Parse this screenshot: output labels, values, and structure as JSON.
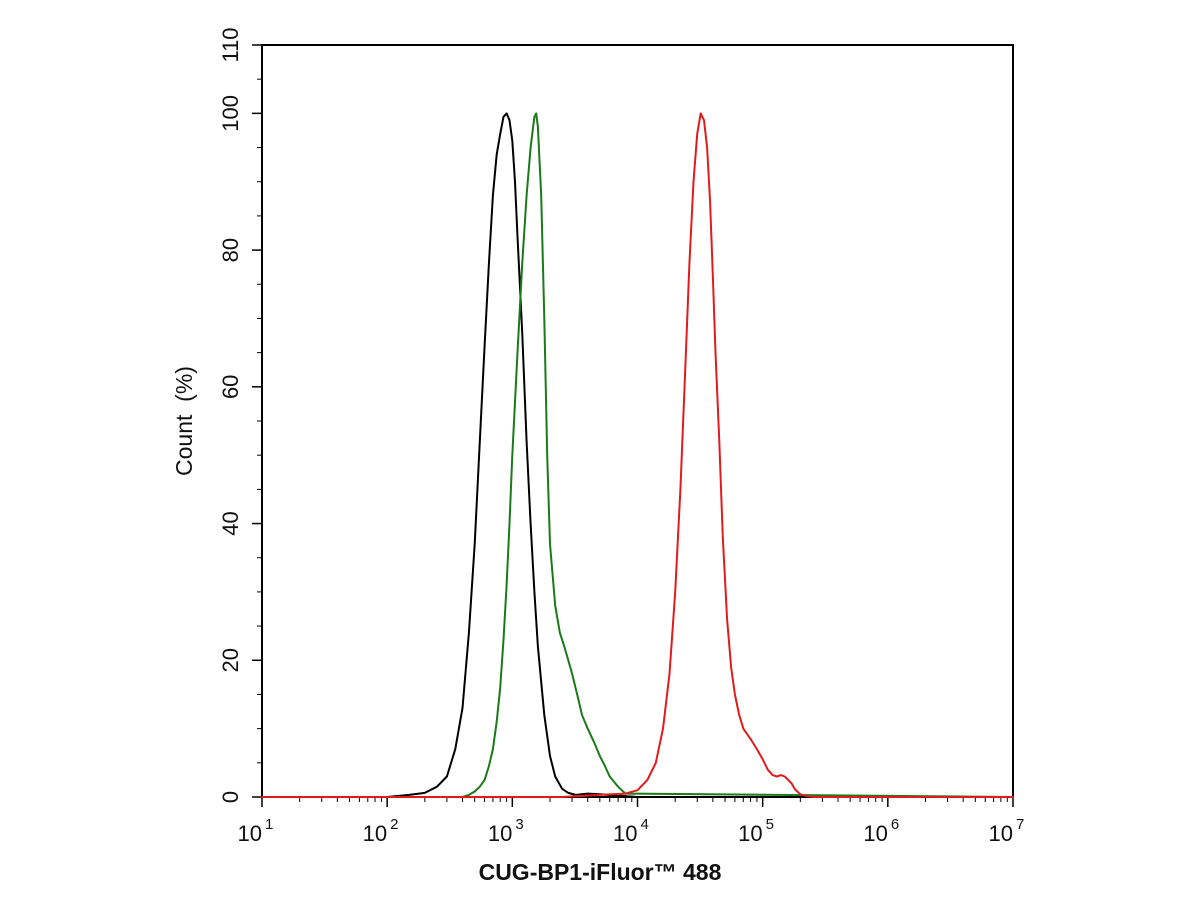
{
  "chart_data": {
    "type": "line",
    "xlabel": "CUG-BP1-iFluor™ 488",
    "ylabel": "Count  (%)",
    "xscale": "log",
    "xlim": [
      10,
      10000000
    ],
    "ylim": [
      0,
      110
    ],
    "yticks": [
      0,
      20,
      40,
      60,
      80,
      100,
      110
    ],
    "xticks": [
      {
        "base": "10",
        "exp": "1",
        "value": 10
      },
      {
        "base": "10",
        "exp": "2",
        "value": 100
      },
      {
        "base": "10",
        "exp": "3",
        "value": 1000
      },
      {
        "base": "10",
        "exp": "4",
        "value": 10000
      },
      {
        "base": "10",
        "exp": "5",
        "value": 100000
      },
      {
        "base": "10",
        "exp": "6",
        "value": 1000000
      },
      {
        "base": "10",
        "exp": "7",
        "value": 10000000
      }
    ],
    "grid": false,
    "series": [
      {
        "color": "#000000",
        "x": [
          10,
          100,
          150,
          200,
          250,
          300,
          350,
          400,
          450,
          500,
          550,
          600,
          650,
          700,
          750,
          800,
          850,
          900,
          950,
          1000,
          1050,
          1100,
          1200,
          1300,
          1400,
          1500,
          1600,
          1800,
          2000,
          2200,
          2500,
          2800,
          3200,
          4000,
          5000,
          7000,
          10000,
          10000000
        ],
        "y": [
          0,
          0,
          0.3,
          0.6,
          1.5,
          3,
          7,
          13,
          24,
          37,
          52,
          66,
          78,
          88,
          94,
          97,
          99.5,
          100,
          99,
          96,
          90,
          82,
          68,
          52,
          40,
          30,
          22,
          12,
          6,
          3,
          1.2,
          0.6,
          0.3,
          0.5,
          0.4,
          0.2,
          0,
          0
        ]
      },
      {
        "color": "#1a7a1a",
        "x": [
          10,
          400,
          450,
          500,
          550,
          600,
          650,
          700,
          750,
          800,
          850,
          900,
          950,
          1000,
          1100,
          1200,
          1300,
          1400,
          1500,
          1550,
          1600,
          1700,
          1800,
          1900,
          2000,
          2200,
          2400,
          2600,
          2800,
          3000,
          3300,
          3600,
          4000,
          4500,
          5000,
          5500,
          6000,
          7000,
          8000,
          10000000
        ],
        "y": [
          0,
          0,
          0.3,
          0.8,
          1.5,
          2.5,
          4.5,
          7,
          11,
          16,
          23,
          31,
          40,
          50,
          65,
          78,
          88,
          95,
          99.5,
          100,
          98,
          88,
          70,
          50,
          37,
          28,
          24,
          22,
          20,
          18,
          15,
          12,
          10,
          8,
          6,
          4.5,
          3,
          1.5,
          0.5,
          0
        ]
      },
      {
        "color": "#e31a1c",
        "x": [
          10,
          2500,
          5000,
          8000,
          10000,
          12000,
          14000,
          16000,
          18000,
          20000,
          22000,
          24000,
          26000,
          28000,
          30000,
          32000,
          34000,
          36000,
          38000,
          40000,
          42000,
          45000,
          48000,
          52000,
          56000,
          60000,
          65000,
          70000,
          80000,
          90000,
          100000,
          110000,
          120000,
          130000,
          140000,
          150000,
          160000,
          170000,
          180000,
          200000,
          230000,
          260000,
          10000000
        ],
        "y": [
          0,
          0,
          0.3,
          0.5,
          1,
          2.5,
          5,
          10,
          18,
          30,
          45,
          62,
          78,
          90,
          97,
          100,
          99,
          95,
          87,
          76,
          65,
          52,
          38,
          26,
          19,
          15,
          12,
          10,
          8.5,
          7,
          5.5,
          4,
          3.2,
          3,
          3.2,
          3,
          2.5,
          2,
          1.2,
          0.4,
          0.1,
          0,
          0
        ]
      }
    ]
  }
}
